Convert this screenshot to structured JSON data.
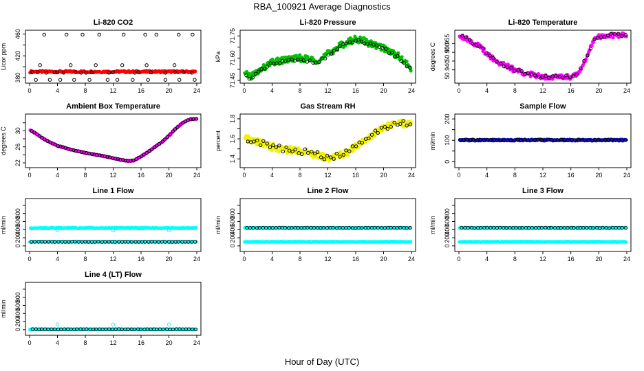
{
  "figure": {
    "title": "RBA_100921  Average Diagnostics",
    "xlabel": "Hour of Day (UTC)"
  },
  "chart_data": [
    {
      "type": "scatter",
      "title": "Li-820 CO2",
      "ylabel": "Licor ppm",
      "xlim": [
        0,
        24
      ],
      "ylim": [
        375,
        462
      ],
      "yticks": [
        380,
        400,
        420,
        440,
        460
      ],
      "ytick_labels": [
        "380",
        "",
        "420",
        "",
        "460"
      ],
      "xticks": [
        0,
        4,
        8,
        12,
        16,
        20,
        24
      ],
      "series": [
        {
          "name": "red",
          "color": "#ff0000",
          "marker": "filled",
          "gen": "band",
          "x0": 0.1,
          "x1": 23.8,
          "n": 170,
          "y": 391,
          "amp": 1.6
        },
        {
          "name": "black",
          "color": "#000000",
          "marker": "open",
          "x": [
            0.4,
            2.1,
            5.3,
            7.6,
            10.0,
            13.5,
            16.6,
            18.2,
            21.4,
            23.4,
            0.9,
            2.9,
            4.4,
            6.4,
            8.6,
            11.2,
            12.6,
            14.8,
            17.0,
            19.5,
            21.5,
            23.7,
            1.5,
            5.9,
            9.5,
            13.3,
            16.8,
            20.8,
            2.4,
            4.9,
            7.4,
            8.1,
            11.4,
            15.1,
            19.5,
            23.3,
            1.2,
            3.6,
            4.0,
            6.6,
            8.9,
            12.0,
            15.6,
            17.4,
            20.9,
            22.1
          ],
          "y": [
            390,
            459,
            459,
            459,
            459,
            459,
            459,
            459,
            459,
            459,
            376,
            376,
            376,
            376,
            376,
            376,
            376,
            376,
            376,
            376,
            376,
            376,
            403,
            403,
            403,
            403,
            403,
            403,
            389,
            389,
            389,
            389,
            389,
            389,
            389,
            389,
            390,
            390,
            390,
            390,
            390,
            390,
            390,
            390,
            390,
            390
          ]
        }
      ]
    },
    {
      "type": "scatter",
      "title": "Li-820 Pressure",
      "ylabel": "kPa",
      "xlim": [
        0,
        24
      ],
      "ylim": [
        71.45,
        71.77
      ],
      "yticks": [
        71.45,
        71.525,
        71.6,
        71.675,
        71.75
      ],
      "ytick_labels": [
        "71.45",
        "",
        "71.60",
        "",
        "71.75"
      ],
      "xticks": [
        0,
        4,
        8,
        12,
        16,
        20,
        24
      ],
      "series": [
        {
          "name": "green",
          "color": "#00c400",
          "marker": "filled",
          "gen": "curve",
          "x0": 0.1,
          "x1": 23.9,
          "n": 230,
          "amp": 0.022,
          "cx": [
            0,
            1,
            3,
            4,
            6,
            8,
            10,
            11,
            12,
            14,
            16,
            17,
            18,
            20,
            22,
            24
          ],
          "cy": [
            71.49,
            71.48,
            71.54,
            71.57,
            71.59,
            71.6,
            71.59,
            71.59,
            71.63,
            71.69,
            71.73,
            71.72,
            71.7,
            71.67,
            71.62,
            71.53
          ]
        },
        {
          "name": "black",
          "color": "#000000",
          "marker": "open",
          "gen": "curve",
          "x0": 0.3,
          "x1": 23.8,
          "n": 55,
          "amp": 0.012,
          "cx": [
            0,
            1,
            3,
            4,
            6,
            8,
            10,
            11,
            12,
            14,
            16,
            17,
            18,
            20,
            22,
            24
          ],
          "cy": [
            71.48,
            71.47,
            71.53,
            71.56,
            71.58,
            71.585,
            71.58,
            71.58,
            71.62,
            71.68,
            71.72,
            71.71,
            71.69,
            71.66,
            71.61,
            71.52
          ]
        }
      ]
    },
    {
      "type": "scatter",
      "title": "Li-820 Temperature",
      "ylabel": "degrees C",
      "xlim": [
        0,
        24
      ],
      "ylim": [
        50.934,
        50.961
      ],
      "yticks": [
        50.94,
        50.945,
        50.95,
        50.955
      ],
      "ytick_labels": [
        "50.940",
        "",
        "50.950",
        "50.955"
      ],
      "xticks": [
        0,
        4,
        8,
        12,
        16,
        20,
        24
      ],
      "series": [
        {
          "name": "magenta",
          "color": "#ff00ff",
          "marker": "filled",
          "gen": "curve",
          "x0": 0.1,
          "x1": 23.9,
          "n": 210,
          "amp": 0.0014,
          "cx": [
            0,
            1,
            2,
            3,
            4,
            5,
            6,
            8,
            10,
            12,
            14,
            16,
            16.8,
            17.5,
            18.5,
            19.5,
            21,
            24
          ],
          "cy": [
            50.96,
            50.958,
            50.9555,
            50.953,
            50.9495,
            50.946,
            50.9435,
            50.94,
            50.9375,
            50.9362,
            50.936,
            50.9361,
            50.937,
            50.941,
            50.95,
            50.958,
            50.9597,
            50.9598
          ]
        },
        {
          "name": "black",
          "color": "#000000",
          "marker": "open",
          "gen": "curve",
          "x0": 0.5,
          "x1": 23.8,
          "n": 48,
          "amp": 0.0009,
          "cx": [
            0,
            1,
            2,
            3,
            4,
            5,
            6,
            8,
            10,
            12,
            14,
            16,
            16.8,
            17.5,
            18.5,
            19.5,
            21,
            24
          ],
          "cy": [
            50.96,
            50.958,
            50.9555,
            50.953,
            50.9495,
            50.946,
            50.9435,
            50.94,
            50.9375,
            50.9362,
            50.936,
            50.9361,
            50.937,
            50.941,
            50.95,
            50.958,
            50.9597,
            50.9598
          ]
        }
      ]
    },
    {
      "type": "scatter",
      "title": "Ambient Box Temperature",
      "ylabel": "degrees C",
      "xlim": [
        0,
        24
      ],
      "ylim": [
        21.5,
        33.5
      ],
      "yticks": [
        22,
        24,
        26,
        28,
        30,
        32
      ],
      "ytick_labels": [
        "22",
        "",
        "26",
        "",
        "30",
        ""
      ],
      "xticks": [
        0,
        4,
        8,
        12,
        16,
        20,
        24
      ],
      "series": [
        {
          "name": "magenta",
          "color": "#ff00ff",
          "marker": "filled",
          "gen": "curve",
          "x0": 0.1,
          "x1": 23.9,
          "n": 230,
          "amp": 0.08,
          "cx": [
            0,
            1,
            2,
            3,
            4,
            6,
            8,
            10,
            12,
            13,
            14,
            15,
            16,
            17,
            18,
            19,
            20,
            21,
            22,
            23,
            24
          ],
          "cy": [
            30.3,
            29.2,
            28.0,
            27.1,
            26.3,
            25.3,
            24.5,
            23.9,
            23.2,
            22.8,
            22.5,
            22.6,
            23.6,
            24.7,
            26.0,
            27.2,
            28.8,
            30.6,
            32.0,
            32.9,
            33.0
          ]
        },
        {
          "name": "black",
          "color": "#000000",
          "marker": "open",
          "gen": "curve",
          "x0": 0.3,
          "x1": 23.9,
          "n": 64,
          "amp": 0.04,
          "cx": [
            0,
            1,
            2,
            3,
            4,
            6,
            8,
            10,
            12,
            13,
            14,
            15,
            16,
            17,
            18,
            19,
            20,
            21,
            22,
            23,
            24
          ],
          "cy": [
            30.3,
            29.2,
            28.0,
            27.1,
            26.3,
            25.3,
            24.5,
            23.9,
            23.2,
            22.8,
            22.5,
            22.6,
            23.6,
            24.7,
            26.0,
            27.2,
            28.8,
            30.6,
            32.0,
            32.9,
            33.0
          ]
        }
      ]
    },
    {
      "type": "scatter",
      "title": "Gas Stream RH",
      "ylabel": "percent",
      "xlim": [
        0,
        24
      ],
      "ylim": [
        1.34,
        1.82
      ],
      "yticks": [
        1.4,
        1.5,
        1.6,
        1.7,
        1.8
      ],
      "ytick_labels": [
        "1.4",
        "",
        "1.6",
        "",
        "1.8"
      ],
      "xticks": [
        0,
        4,
        8,
        12,
        16,
        20,
        24
      ],
      "series": [
        {
          "name": "yellow",
          "color": "#f2f200",
          "marker": "filled",
          "gen": "curve",
          "x0": 0.1,
          "x1": 23.9,
          "n": 230,
          "amp": 0.035,
          "cx": [
            0,
            2,
            4,
            6,
            8,
            10,
            11,
            12,
            13,
            14,
            15,
            16,
            17,
            18,
            19,
            20,
            21,
            22,
            24
          ],
          "cy": [
            1.6,
            1.57,
            1.52,
            1.49,
            1.48,
            1.45,
            1.43,
            1.41,
            1.42,
            1.44,
            1.47,
            1.53,
            1.58,
            1.62,
            1.67,
            1.71,
            1.74,
            1.76,
            1.74
          ]
        },
        {
          "name": "black",
          "color": "#000000",
          "marker": "open",
          "gen": "curve",
          "x0": 0.5,
          "x1": 23.8,
          "n": 52,
          "amp": 0.03,
          "cx": [
            0,
            2,
            4,
            6,
            8,
            10,
            11,
            12,
            13,
            14,
            15,
            16,
            17,
            18,
            19,
            20,
            21,
            22,
            24
          ],
          "cy": [
            1.6,
            1.57,
            1.52,
            1.49,
            1.48,
            1.45,
            1.43,
            1.41,
            1.42,
            1.44,
            1.47,
            1.53,
            1.58,
            1.62,
            1.67,
            1.71,
            1.74,
            1.76,
            1.74
          ]
        }
      ]
    },
    {
      "type": "scatter",
      "title": "Sample Flow",
      "ylabel": "ml/min",
      "xlim": [
        0,
        24
      ],
      "ylim": [
        -15,
        210
      ],
      "yticks": [
        0,
        50,
        100,
        150,
        200
      ],
      "ytick_labels": [
        "0",
        "",
        "100",
        "",
        "200"
      ],
      "xticks": [
        0,
        4,
        8,
        12,
        16,
        20,
        24
      ],
      "series": [
        {
          "name": "blue",
          "color": "#1010d0",
          "marker": "filled",
          "gen": "band",
          "x0": 0.1,
          "x1": 23.9,
          "n": 230,
          "y": 101,
          "amp": 3
        },
        {
          "name": "black",
          "color": "#000000",
          "marker": "open",
          "gen": "band",
          "x0": 0.2,
          "x1": 23.8,
          "n": 50,
          "y": 101,
          "amp": 2.5
        }
      ]
    },
    {
      "type": "scatter",
      "title": "Line 1 Flow",
      "ylabel": "ml/min",
      "xlim": [
        0,
        24
      ],
      "ylim": [
        -70,
        1100
      ],
      "yticks": [
        0,
        200,
        400,
        600,
        800,
        1000
      ],
      "ytick_labels": [
        "0",
        "200",
        "400",
        "600",
        "800",
        ""
      ],
      "xticks": [
        0,
        4,
        8,
        12,
        16,
        20,
        24
      ],
      "series": [
        {
          "name": "cyan-high",
          "color": "#00ffff",
          "marker": "filled",
          "gen": "band",
          "x0": 0.1,
          "x1": 23.9,
          "n": 230,
          "y": 440,
          "amp": 10
        },
        {
          "name": "cyan-low",
          "color": "#00ffff",
          "marker": "filled",
          "gen": "band",
          "x0": 0.1,
          "x1": 23.9,
          "n": 150,
          "y": 100,
          "amp": 5
        },
        {
          "name": "black",
          "color": "#000000",
          "marker": "open",
          "gen": "band",
          "x0": 0.3,
          "x1": 23.8,
          "n": 50,
          "y": 100,
          "amp": 3
        },
        {
          "name": "cyan-outliers",
          "color": "#00ffff",
          "marker": "open",
          "x": [
            4.0,
            12.0,
            20.0
          ],
          "y": [
            385,
            385,
            385
          ]
        }
      ]
    },
    {
      "type": "scatter",
      "title": "Line 2 Flow",
      "ylabel": "ml/min",
      "xlim": [
        0,
        24
      ],
      "ylim": [
        -70,
        1100
      ],
      "yticks": [
        0,
        200,
        400,
        600,
        800,
        1000
      ],
      "ytick_labels": [
        "0",
        "200",
        "400",
        "600",
        "800",
        ""
      ],
      "xticks": [
        0,
        4,
        8,
        12,
        16,
        20,
        24
      ],
      "series": [
        {
          "name": "cyan-low",
          "color": "#00ffff",
          "marker": "filled",
          "gen": "band",
          "x0": 0.1,
          "x1": 23.9,
          "n": 230,
          "y": 100,
          "amp": 6
        },
        {
          "name": "cyan-high",
          "color": "#00ffff",
          "marker": "filled",
          "gen": "band",
          "x0": 0.1,
          "x1": 23.9,
          "n": 120,
          "y": 445,
          "amp": 6
        },
        {
          "name": "black",
          "color": "#000000",
          "marker": "open",
          "gen": "band",
          "x0": 0.4,
          "x1": 23.8,
          "n": 52,
          "y": 445,
          "amp": 4
        }
      ]
    },
    {
      "type": "scatter",
      "title": "Line 3 Flow",
      "ylabel": "ml/min",
      "xlim": [
        0,
        24
      ],
      "ylim": [
        -70,
        1100
      ],
      "yticks": [
        0,
        200,
        400,
        600,
        800,
        1000
      ],
      "ytick_labels": [
        "0",
        "200",
        "400",
        "600",
        "800",
        ""
      ],
      "xticks": [
        0,
        4,
        8,
        12,
        16,
        20,
        24
      ],
      "series": [
        {
          "name": "cyan-low",
          "color": "#00ffff",
          "marker": "filled",
          "gen": "band",
          "x0": 0.1,
          "x1": 23.9,
          "n": 230,
          "y": 100,
          "amp": 6
        },
        {
          "name": "cyan-high",
          "color": "#00ffff",
          "marker": "filled",
          "gen": "band",
          "x0": 0.1,
          "x1": 23.9,
          "n": 120,
          "y": 445,
          "amp": 6
        },
        {
          "name": "black",
          "color": "#000000",
          "marker": "open",
          "gen": "band",
          "x0": 0.4,
          "x1": 23.8,
          "n": 52,
          "y": 445,
          "amp": 4
        }
      ]
    },
    {
      "type": "scatter",
      "title": "Line 4 (LT) Flow",
      "ylabel": "ml/min",
      "xlim": [
        0,
        24
      ],
      "ylim": [
        -70,
        1100
      ],
      "yticks": [
        0,
        200,
        400,
        600,
        800,
        1000
      ],
      "ytick_labels": [
        "0",
        "200",
        "400",
        "600",
        "800",
        ""
      ],
      "xticks": [
        0,
        4,
        8,
        12,
        16,
        20,
        24
      ],
      "series": [
        {
          "name": "cyan",
          "color": "#00ffff",
          "marker": "filled",
          "gen": "band",
          "x0": 0.1,
          "x1": 23.9,
          "n": 200,
          "y": 10,
          "amp": 4
        },
        {
          "name": "black",
          "color": "#000000",
          "marker": "open",
          "gen": "band",
          "x0": 0.4,
          "x1": 23.8,
          "n": 52,
          "y": 10,
          "amp": 3
        },
        {
          "name": "cyan-outliers",
          "color": "#00ffff",
          "marker": "open",
          "x": [
            4.0,
            12.0,
            20.0
          ],
          "y": [
            130,
            130,
            130
          ]
        }
      ]
    }
  ]
}
